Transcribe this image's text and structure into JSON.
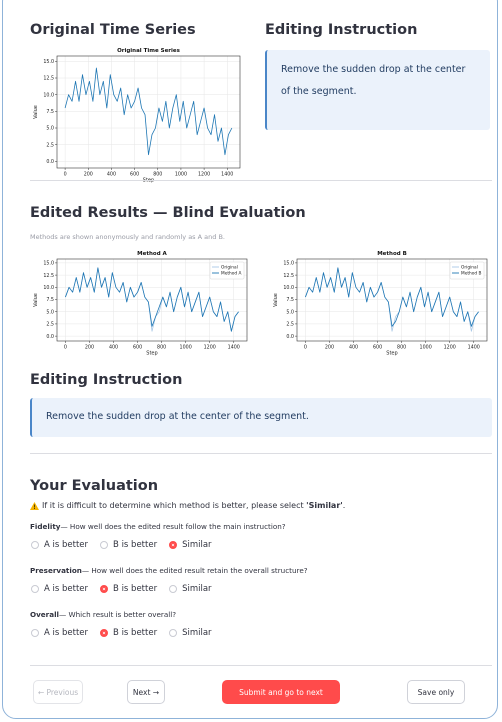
{
  "original": {
    "heading": "Original Time Series",
    "chart": {
      "type": "line",
      "title": "Original Time Series",
      "xlabel": "Step",
      "ylabel": "Value",
      "x": [
        0,
        30,
        60,
        90,
        120,
        150,
        180,
        210,
        240,
        270,
        300,
        330,
        360,
        390,
        420,
        450,
        480,
        510,
        540,
        570,
        600,
        630,
        660,
        690,
        720,
        750,
        780,
        810,
        840,
        870,
        900,
        930,
        960,
        990,
        1020,
        1050,
        1080,
        1110,
        1140,
        1170,
        1200,
        1230,
        1260,
        1290,
        1320,
        1350,
        1380,
        1410,
        1440
      ],
      "series": [
        {
          "color": "#1f77b4",
          "values": [
            8,
            10,
            9,
            12,
            9,
            13,
            10,
            12,
            9,
            14,
            10,
            12,
            8,
            13,
            10,
            9,
            11,
            7,
            10,
            8,
            9,
            11,
            8,
            7,
            1,
            4,
            5,
            8,
            6,
            9,
            5,
            8,
            10,
            6,
            9,
            5,
            7,
            9,
            4,
            6,
            8,
            5,
            4,
            7,
            3,
            5,
            1,
            4,
            5
          ]
        }
      ],
      "xlim": [
        -70,
        1510
      ],
      "ylim": [
        -1,
        15.8
      ],
      "xticks": [
        0,
        200,
        400,
        600,
        800,
        1000,
        1200,
        1400
      ],
      "yticks": [
        {
          "value": 0,
          "label": "0.0"
        },
        2.5,
        {
          "value": 5,
          "label": "5.0"
        },
        7.5,
        {
          "value": 10,
          "label": "10.0"
        },
        12.5,
        {
          "value": 15,
          "label": "15.0"
        }
      ],
      "grid": true
    }
  },
  "instruction_top": {
    "heading": "Editing Instruction",
    "text": "Remove the sudden drop at the center of the segment."
  },
  "results": {
    "heading": "Edited Results — Blind Evaluation",
    "note": "Methods are shown anonymously and randomly as A and B.",
    "charts": [
      {
        "type": "line",
        "title": "Method A",
        "xlabel": "Step",
        "ylabel": "Value",
        "x": [
          0,
          30,
          60,
          90,
          120,
          150,
          180,
          210,
          240,
          270,
          300,
          330,
          360,
          390,
          420,
          450,
          480,
          510,
          540,
          570,
          600,
          630,
          660,
          690,
          720,
          750,
          780,
          810,
          840,
          870,
          900,
          930,
          960,
          990,
          1020,
          1050,
          1080,
          1110,
          1140,
          1170,
          1200,
          1230,
          1260,
          1290,
          1320,
          1350,
          1380,
          1410,
          1440
        ],
        "series": [
          {
            "name": "Original",
            "color": "#a9c8e6",
            "values": [
              8,
              10,
              9,
              12,
              9,
              13,
              10,
              12,
              9,
              14,
              10,
              12,
              8,
              13,
              10,
              9,
              11,
              7,
              10,
              8,
              9,
              11,
              8,
              7,
              1,
              4,
              5,
              8,
              6,
              9,
              5,
              8,
              10,
              6,
              9,
              5,
              7,
              9,
              4,
              6,
              8,
              5,
              4,
              7,
              3,
              5,
              1,
              4,
              5
            ]
          },
          {
            "name": "Method A",
            "color": "#1f77b4",
            "values": [
              8,
              10,
              9,
              12,
              9,
              13,
              10,
              12,
              9,
              14,
              10,
              12,
              8,
              13,
              10,
              9,
              11,
              7,
              10,
              8,
              9,
              11,
              8,
              7,
              2,
              4,
              6,
              8,
              6,
              9,
              5,
              8,
              10,
              6,
              9,
              5,
              7,
              9,
              4,
              6,
              8,
              5,
              4,
              7,
              3,
              5,
              1,
              4,
              5
            ]
          }
        ],
        "xlim": [
          -70,
          1510
        ],
        "ylim": [
          -1,
          15.8
        ],
        "xticks": [
          0,
          200,
          400,
          600,
          800,
          1000,
          1200,
          1400
        ],
        "yticks": [
          {
            "value": 0,
            "label": "0.0"
          },
          2.5,
          {
            "value": 5,
            "label": "5.0"
          },
          7.5,
          {
            "value": 10,
            "label": "10.0"
          },
          12.5,
          {
            "value": 15,
            "label": "15.0"
          }
        ],
        "grid": true,
        "legend": "upper right"
      },
      {
        "type": "line",
        "title": "Method B",
        "xlabel": "Step",
        "ylabel": "Value",
        "x": [
          0,
          30,
          60,
          90,
          120,
          150,
          180,
          210,
          240,
          270,
          300,
          330,
          360,
          390,
          420,
          450,
          480,
          510,
          540,
          570,
          600,
          630,
          660,
          690,
          720,
          750,
          780,
          810,
          840,
          870,
          900,
          930,
          960,
          990,
          1020,
          1050,
          1080,
          1110,
          1140,
          1170,
          1200,
          1230,
          1260,
          1290,
          1320,
          1350,
          1380,
          1410,
          1440
        ],
        "series": [
          {
            "name": "Original",
            "color": "#a9c8e6",
            "values": [
              8,
              10,
              9,
              12,
              9,
              13,
              10,
              12,
              9,
              14,
              10,
              12,
              8,
              13,
              10,
              9,
              11,
              7,
              10,
              8,
              9,
              11,
              8,
              7,
              1,
              4,
              5,
              8,
              6,
              9,
              5,
              8,
              10,
              6,
              9,
              5,
              7,
              9,
              4,
              6,
              8,
              5,
              4,
              7,
              3,
              5,
              1,
              4,
              5
            ]
          },
          {
            "name": "Method B",
            "color": "#1f77b4",
            "values": [
              8,
              10,
              9,
              12,
              9,
              13,
              10,
              12,
              9,
              14,
              10,
              12,
              8,
              13,
              10,
              9,
              11,
              7,
              10,
              8,
              9,
              11,
              8,
              7,
              2,
              3,
              5,
              8,
              6,
              9,
              5,
              8,
              10,
              6,
              9,
              5,
              7,
              9,
              4,
              6,
              8,
              5,
              4,
              7,
              3,
              5,
              2,
              4,
              5
            ]
          }
        ],
        "xlim": [
          -70,
          1510
        ],
        "ylim": [
          -1,
          15.8
        ],
        "xticks": [
          0,
          200,
          400,
          600,
          800,
          1000,
          1200,
          1400
        ],
        "yticks": [
          {
            "value": 0,
            "label": "0.0"
          },
          2.5,
          {
            "value": 5,
            "label": "5.0"
          },
          7.5,
          {
            "value": 10,
            "label": "10.0"
          },
          12.5,
          {
            "value": 15,
            "label": "15.0"
          }
        ],
        "grid": true,
        "legend": "upper right"
      }
    ]
  },
  "instruction": {
    "heading": "Editing Instruction",
    "text": "Remove the sudden drop at the center of the segment."
  },
  "evaluation": {
    "heading": "Your Evaluation",
    "warning": {
      "before": "If it is difficult to determine which method is better, please select ",
      "emphasis": "'Similar'",
      "after": "."
    },
    "questions": [
      {
        "label": "Fidelity",
        "prompt": "— How well does the edited result follow the main instruction?",
        "options": [
          "A is better",
          "B is better",
          "Similar"
        ],
        "selected": 2
      },
      {
        "label": "Preservation",
        "prompt": "— How well does the edited result retain the overall structure?",
        "options": [
          "A is better",
          "B is better",
          "Similar"
        ],
        "selected": 1
      },
      {
        "label": "Overall",
        "prompt": "— Which result is better overall?",
        "options": [
          "A is better",
          "B is better",
          "Similar"
        ],
        "selected": 1
      }
    ]
  },
  "buttons": [
    "← Previous",
    "Next →",
    "Submit and go to next",
    "Save only"
  ]
}
